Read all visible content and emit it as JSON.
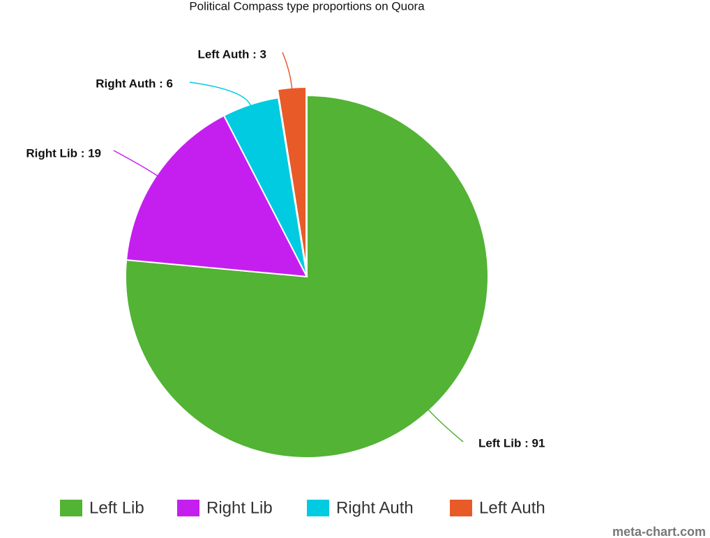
{
  "chart_data": {
    "type": "pie",
    "title": "Political Compass type proportions on Quora",
    "categories": [
      "Left Lib",
      "Right Lib",
      "Right Auth",
      "Left Auth"
    ],
    "values": [
      91,
      19,
      6,
      3
    ],
    "value_labels": [
      "Left Lib : 91",
      "Right Lib : 19",
      "Right Auth : 6",
      "Left Auth : 3"
    ],
    "colors": [
      "#52b335",
      "#c51ff0",
      "#00cbe0",
      "#e85a28"
    ],
    "exploded": [
      false,
      false,
      false,
      true
    ],
    "legend": "bottom",
    "watermark": "meta-chart.com"
  }
}
